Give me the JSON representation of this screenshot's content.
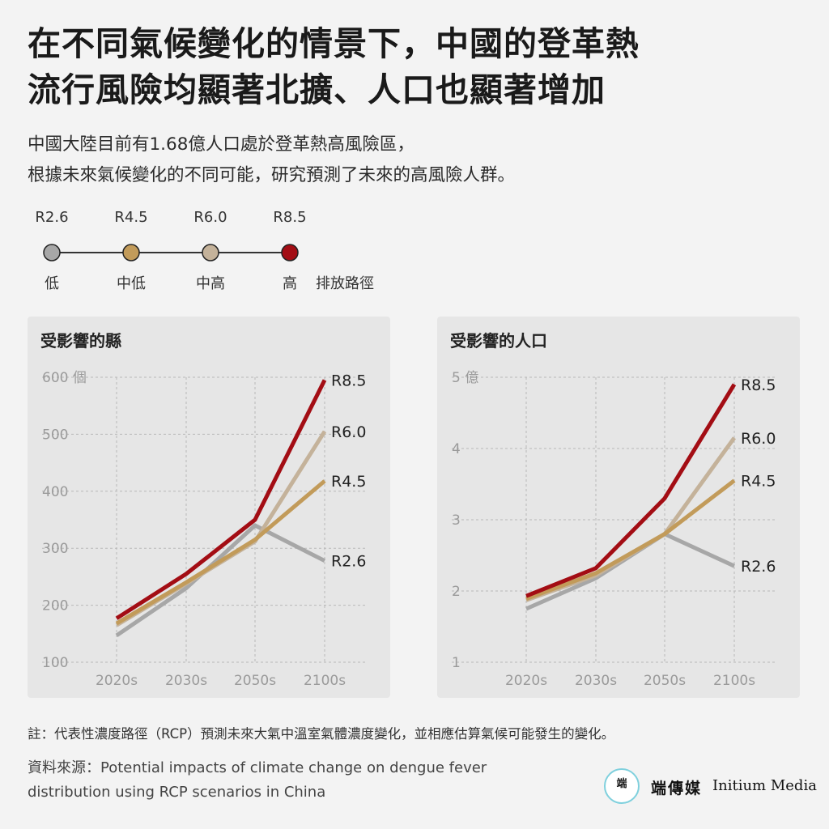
{
  "title": {
    "line1": "在不同氣候變化的情景下，中國的登革熱",
    "line2": "流行風險均顯著北擴、人口也顯著增加"
  },
  "subtitle": {
    "line1": "中國大陸目前有1.68億人口處於登革熱高風險區，",
    "line2": "根據未來氣候變化的不同可能，研究預測了未來的高風險人群。"
  },
  "legend": {
    "items": [
      {
        "code": "R2.6",
        "level": "低",
        "color": "#a7a7a7"
      },
      {
        "code": "R4.5",
        "level": "中低",
        "color": "#c29b5a"
      },
      {
        "code": "R6.0",
        "level": "中高",
        "color": "#c4b29a"
      },
      {
        "code": "R8.5",
        "level": "高",
        "color": "#a30d14"
      }
    ],
    "path_label": "排放路徑"
  },
  "chart_data": [
    {
      "type": "line",
      "title": "受影響的縣",
      "unit": "個",
      "categories": [
        "2020s",
        "2030s",
        "2050s",
        "2100s"
      ],
      "yticks": [
        100,
        200,
        300,
        400,
        500,
        600
      ],
      "ylim": [
        100,
        600
      ],
      "grid": true,
      "series": [
        {
          "name": "R2.6",
          "values": [
            147,
            230,
            340,
            278
          ],
          "color": "#a7a7a7"
        },
        {
          "name": "R6.0",
          "values": [
            165,
            238,
            312,
            505
          ],
          "color": "#c4b29a"
        },
        {
          "name": "R4.5",
          "values": [
            168,
            240,
            315,
            418
          ],
          "color": "#c29b5a"
        },
        {
          "name": "R8.5",
          "values": [
            177,
            255,
            350,
            595
          ],
          "color": "#a30d14"
        }
      ]
    },
    {
      "type": "line",
      "title": "受影響的人口",
      "unit": "億",
      "categories": [
        "2020s",
        "2030s",
        "2050s",
        "2100s"
      ],
      "yticks": [
        1,
        2,
        3,
        4,
        5
      ],
      "ylim": [
        1,
        5
      ],
      "grid": true,
      "series": [
        {
          "name": "R2.6",
          "values": [
            1.75,
            2.18,
            2.8,
            2.35
          ],
          "color": "#a7a7a7"
        },
        {
          "name": "R6.0",
          "values": [
            1.87,
            2.22,
            2.8,
            4.15
          ],
          "color": "#c4b29a"
        },
        {
          "name": "R4.5",
          "values": [
            1.89,
            2.25,
            2.8,
            3.55
          ],
          "color": "#c29b5a"
        },
        {
          "name": "R8.5",
          "values": [
            1.93,
            2.32,
            3.3,
            4.9
          ],
          "color": "#a30d14"
        }
      ]
    }
  ],
  "note": "註：代表性濃度路徑（RCP）預測未來大氣中溫室氣體濃度變化，並相應估算氣候可能發生的變化。",
  "source": {
    "line1": "資料來源：Potential impacts of climate change on dengue fever",
    "line2": "distribution using RCP scenarios in China"
  },
  "brand": {
    "logo_text": "端",
    "name_cn": "端傳媒",
    "name_en": "Initium Media",
    "accent": "#7fd0dd"
  }
}
